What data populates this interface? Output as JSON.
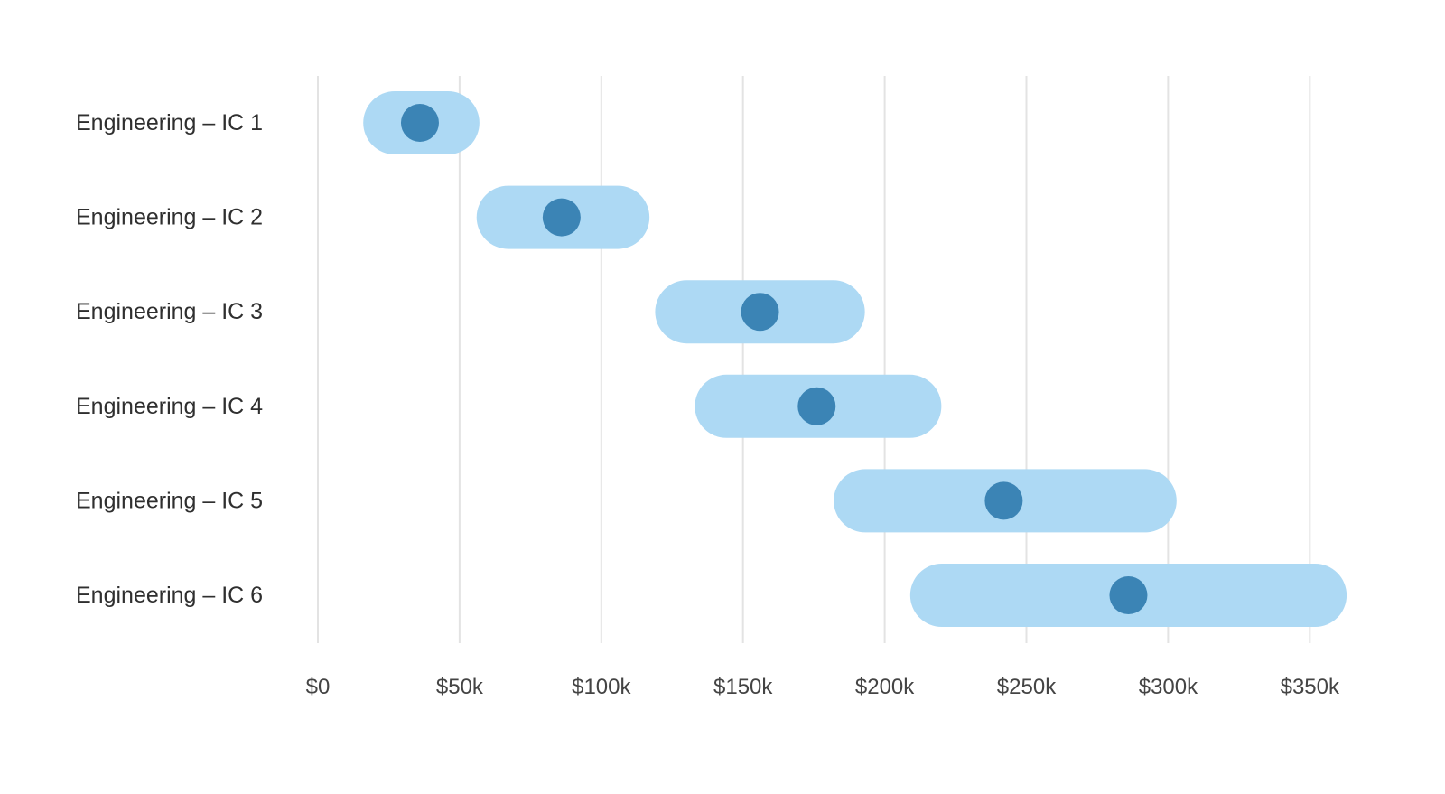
{
  "chart_data": {
    "type": "range",
    "title": "",
    "xlabel": "",
    "ylabel": "",
    "xlim": [
      0,
      350000
    ],
    "x_ticks": [
      0,
      50000,
      100000,
      150000,
      200000,
      250000,
      300000,
      350000
    ],
    "x_tick_labels": [
      "$0",
      "$50k",
      "$100k",
      "$150k",
      "$200k",
      "$250k",
      "$300k",
      "$350k"
    ],
    "grid": true,
    "legend": "none",
    "categories": [
      "Engineering – IC 1",
      "Engineering – IC 2",
      "Engineering – IC 3",
      "Engineering – IC 4",
      "Engineering – IC 5",
      "Engineering – IC 6"
    ],
    "ranges": [
      {
        "min": 16000,
        "max": 57000,
        "marker": 36000
      },
      {
        "min": 56000,
        "max": 117000,
        "marker": 86000
      },
      {
        "min": 119000,
        "max": 193000,
        "marker": 156000
      },
      {
        "min": 133000,
        "max": 220000,
        "marker": 176000
      },
      {
        "min": 182000,
        "max": 303000,
        "marker": 242000
      },
      {
        "min": 209000,
        "max": 363000,
        "marker": 286000
      }
    ],
    "colors": {
      "range_bar": "#add9f4",
      "marker": "#3b84b5",
      "grid": "#e3e3e3"
    }
  }
}
